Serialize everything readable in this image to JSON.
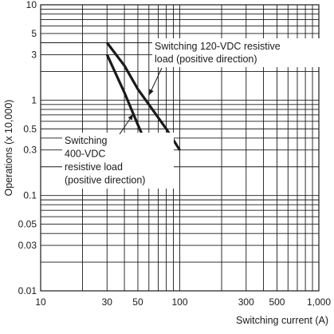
{
  "chart_data": {
    "type": "line",
    "xlabel": "Switching current (A)",
    "ylabel": "Operations (x 10,000)",
    "xscale": "log",
    "yscale": "log",
    "xlim": [
      10,
      1000
    ],
    "ylim": [
      0.01,
      10
    ],
    "grid": true,
    "x_ticks": [
      {
        "value": 10,
        "label": "10"
      },
      {
        "value": 30,
        "label": "30"
      },
      {
        "value": 50,
        "label": "50"
      },
      {
        "value": 100,
        "label": "100"
      },
      {
        "value": 300,
        "label": "300"
      },
      {
        "value": 500,
        "label": "500"
      },
      {
        "value": 1000,
        "label": "1,000"
      }
    ],
    "y_ticks": [
      {
        "value": 10,
        "label": "10"
      },
      {
        "value": 5,
        "label": "5"
      },
      {
        "value": 3,
        "label": "3"
      },
      {
        "value": 1,
        "label": "1"
      },
      {
        "value": 0.5,
        "label": "0.5"
      },
      {
        "value": 0.3,
        "label": "0.3"
      },
      {
        "value": 0.1,
        "label": "0.1"
      },
      {
        "value": 0.05,
        "label": "0.05"
      },
      {
        "value": 0.03,
        "label": "0.03"
      },
      {
        "value": 0.01,
        "label": "0.01"
      }
    ],
    "series": [
      {
        "annotation": [
          "Switching 120-VDC resistive",
          "load (positive direction)"
        ],
        "x": [
          30,
          40,
          50,
          60,
          80,
          100
        ],
        "y": [
          4,
          2.3,
          1.3,
          0.9,
          0.5,
          0.3
        ]
      },
      {
        "annotation": [
          "Switching",
          "400-VDC",
          "resistive load",
          "(positive direction)"
        ],
        "x": [
          30,
          40,
          50,
          60
        ],
        "y": [
          3,
          1.2,
          0.55,
          0.3
        ]
      }
    ]
  }
}
